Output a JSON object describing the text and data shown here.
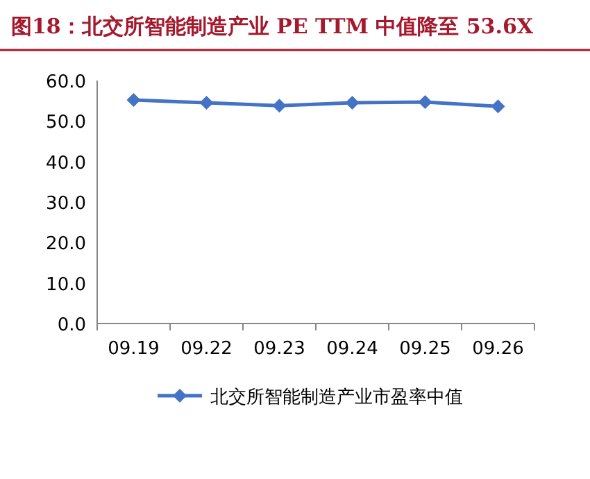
{
  "chart_data": {
    "type": "line",
    "title": "图18：北交所智能制造产业 PE TTM 中值降至 53.6X",
    "categories": [
      "09.19",
      "09.22",
      "09.23",
      "09.24",
      "09.25",
      "09.26"
    ],
    "series": [
      {
        "name": "北交所智能制造产业市盈率中值",
        "color": "#4472c4",
        "values": [
          55.2,
          54.5,
          53.8,
          54.5,
          54.7,
          53.6
        ]
      }
    ],
    "ylim": [
      0,
      60
    ],
    "yticks": [
      {
        "value": 0,
        "label": "0.0"
      },
      {
        "value": 10,
        "label": "10.0"
      },
      {
        "value": 20,
        "label": "20.0"
      },
      {
        "value": 30,
        "label": "30.0"
      },
      {
        "value": 40,
        "label": "40.0"
      },
      {
        "value": 50,
        "label": "50.0"
      },
      {
        "value": 60,
        "label": "60.0"
      }
    ],
    "marker": "diamond",
    "legend": "bottom"
  }
}
